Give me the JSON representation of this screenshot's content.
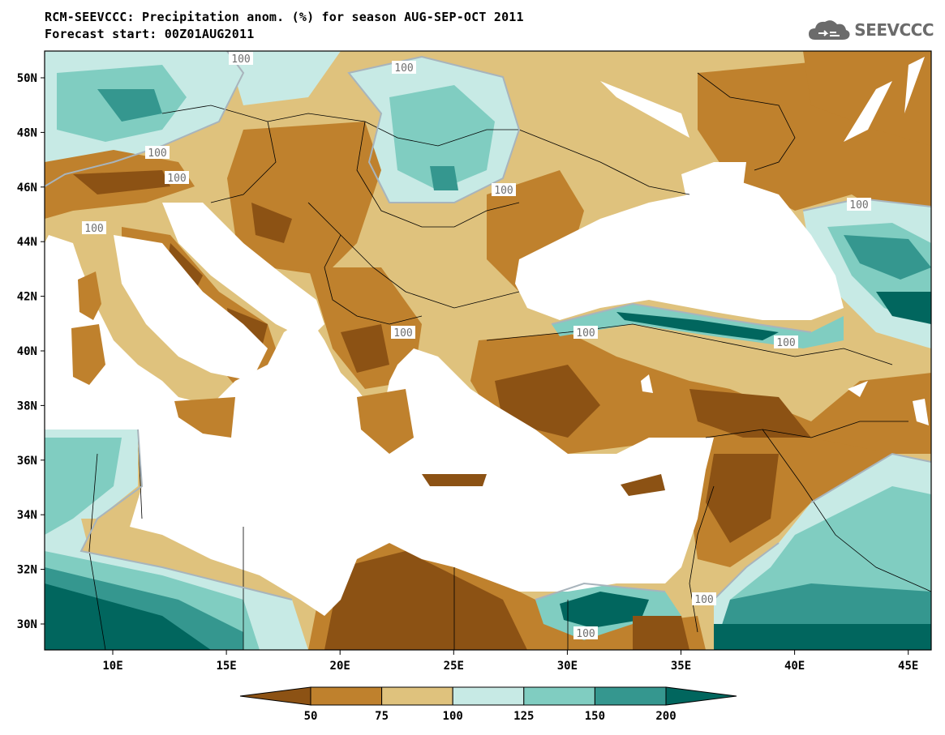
{
  "header": {
    "title_line1": "RCM-SEEVCCC: Precipitation anom. (%) for season AUG-SEP-OCT 2011",
    "title_line2": "Forecast start: 00Z01AUG2011"
  },
  "logo": {
    "text": "SEEVCCC",
    "icon": "cloud-icon"
  },
  "axes": {
    "lat_labels": [
      "50N",
      "48N",
      "46N",
      "44N",
      "42N",
      "40N",
      "38N",
      "36N",
      "34N",
      "32N",
      "30N"
    ],
    "lon_labels": [
      "10E",
      "15E",
      "20E",
      "25E",
      "30E",
      "35E",
      "40E",
      "45E"
    ]
  },
  "contour_label": "100",
  "colorbar": {
    "colors": [
      "#8c5214",
      "#bf812d",
      "#dfc27d",
      "#c7eae5",
      "#80cdc1",
      "#35978f",
      "#01665e"
    ],
    "labels": [
      "50",
      "75",
      "100",
      "125",
      "150",
      "200"
    ]
  },
  "colors": {
    "sea": "#ffffff",
    "land_default": "#dfc27d",
    "contour_line": "#a8b4bc",
    "border_line": "#000000"
  }
}
